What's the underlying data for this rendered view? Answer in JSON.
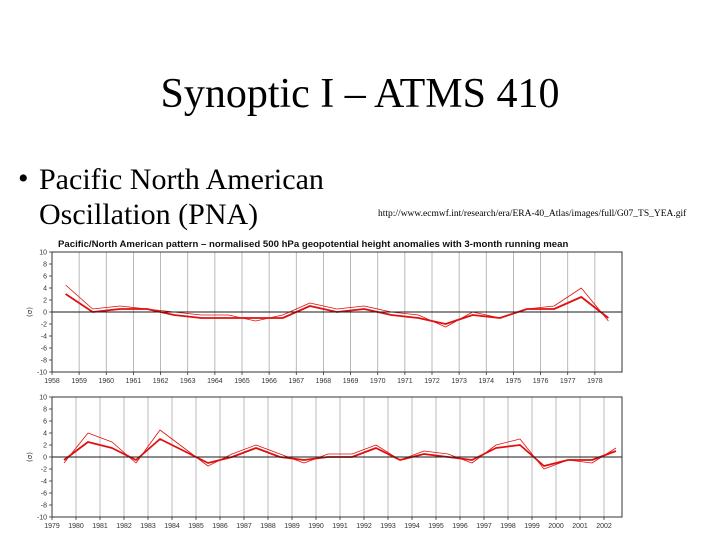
{
  "slide": {
    "title": "Synoptic I – ATMS 410",
    "bullet_symbol": "•",
    "bullet_text": "Pacific North American Oscillation (PNA)",
    "source_url": "http://www.ecmwf.int/research/era/ERA-40_Atlas/images/full/G07_TS_YEA.gif"
  },
  "colors": {
    "series": "#e01010",
    "zero_line": "#1a1a1a",
    "gridline": "#a8a8a8",
    "frame": "#333333",
    "tick_text": "#333333"
  },
  "chart_data": [
    {
      "type": "line",
      "title": "Pacific/North American pattern – normalised 500 hPa geopotential height anomalies with 3-month running mean",
      "ylabel": "(σ)",
      "xlim": [
        1958.0,
        1979.0
      ],
      "ylim": [
        -10,
        10
      ],
      "yticks": [
        10,
        8,
        6,
        4,
        2,
        0,
        -2,
        -4,
        -6,
        -8,
        -10
      ],
      "xticks": [
        "1958",
        "1959",
        "1960",
        "1961",
        "1962",
        "1963",
        "1964",
        "1965",
        "1966",
        "1967",
        "1968",
        "1969",
        "1970",
        "1971",
        "1972",
        "1973",
        "1974",
        "1975",
        "1976",
        "1977",
        "1978"
      ],
      "grid": "vertical at year boundaries",
      "series": [
        {
          "step": "annual",
          "x": [
            1958,
            1959,
            1960,
            1961,
            1962,
            1963,
            1964,
            1965,
            1966,
            1967,
            1968,
            1969,
            1970,
            1971,
            1972,
            1973,
            1974,
            1975,
            1976,
            1977,
            1978
          ],
          "values": [
            4.5,
            0.5,
            1.0,
            0.5,
            0.0,
            -0.5,
            -0.5,
            -1.5,
            -0.5,
            1.5,
            0.5,
            1.0,
            0.0,
            -0.5,
            -2.5,
            0.0,
            -1.0,
            0.5,
            1.0,
            4.0,
            -1.5
          ]
        },
        {
          "step": "annual",
          "x": [
            1958,
            1959,
            1960,
            1961,
            1962,
            1963,
            1964,
            1965,
            1966,
            1967,
            1968,
            1969,
            1970,
            1971,
            1972,
            1973,
            1974,
            1975,
            1976,
            1977,
            1978
          ],
          "values": [
            3.0,
            0.0,
            0.5,
            0.5,
            -0.5,
            -1.0,
            -1.0,
            -1.0,
            -1.0,
            1.0,
            0.0,
            0.5,
            -0.5,
            -1.0,
            -2.0,
            -0.5,
            -1.0,
            0.5,
            0.5,
            2.5,
            -1.0
          ]
        }
      ]
    },
    {
      "type": "line",
      "title": "",
      "ylabel": "(σ)",
      "xlim": [
        1979.0,
        2002.75
      ],
      "ylim": [
        -10,
        10
      ],
      "yticks": [
        10,
        8,
        6,
        4,
        2,
        0,
        -2,
        -4,
        -6,
        -8,
        -10
      ],
      "xticks": [
        "1979",
        "1980",
        "1981",
        "1982",
        "1983",
        "1984",
        "1985",
        "1986",
        "1987",
        "1988",
        "1989",
        "1990",
        "1991",
        "1992",
        "1993",
        "1994",
        "1995",
        "1996",
        "1997",
        "1998",
        "1999",
        "2000",
        "2001",
        "2002"
      ],
      "grid": "vertical at year boundaries",
      "series": [
        {
          "step": "annual",
          "x": [
            1979,
            1980,
            1981,
            1982,
            1983,
            1984,
            1985,
            1986,
            1987,
            1988,
            1989,
            1990,
            1991,
            1992,
            1993,
            1994,
            1995,
            1996,
            1997,
            1998,
            1999,
            2000,
            2001,
            2002
          ],
          "values": [
            -1.0,
            4.0,
            2.5,
            -1.0,
            4.5,
            1.5,
            -1.5,
            0.5,
            2.0,
            0.5,
            -1.0,
            0.5,
            0.5,
            2.0,
            -0.5,
            1.0,
            0.5,
            -1.0,
            2.0,
            3.0,
            -2.0,
            -0.5,
            -1.0,
            1.5
          ]
        },
        {
          "step": "annual",
          "x": [
            1979,
            1980,
            1981,
            1982,
            1983,
            1984,
            1985,
            1986,
            1987,
            1988,
            1989,
            1990,
            1991,
            1992,
            1993,
            1994,
            1995,
            1996,
            1997,
            1998,
            1999,
            2000,
            2001,
            2002
          ],
          "values": [
            -0.5,
            2.5,
            1.5,
            -0.5,
            3.0,
            1.0,
            -1.0,
            0.0,
            1.5,
            0.0,
            -0.5,
            0.0,
            0.0,
            1.5,
            -0.5,
            0.5,
            0.0,
            -0.5,
            1.5,
            2.0,
            -1.5,
            -0.5,
            -0.5,
            1.0
          ]
        }
      ]
    }
  ]
}
